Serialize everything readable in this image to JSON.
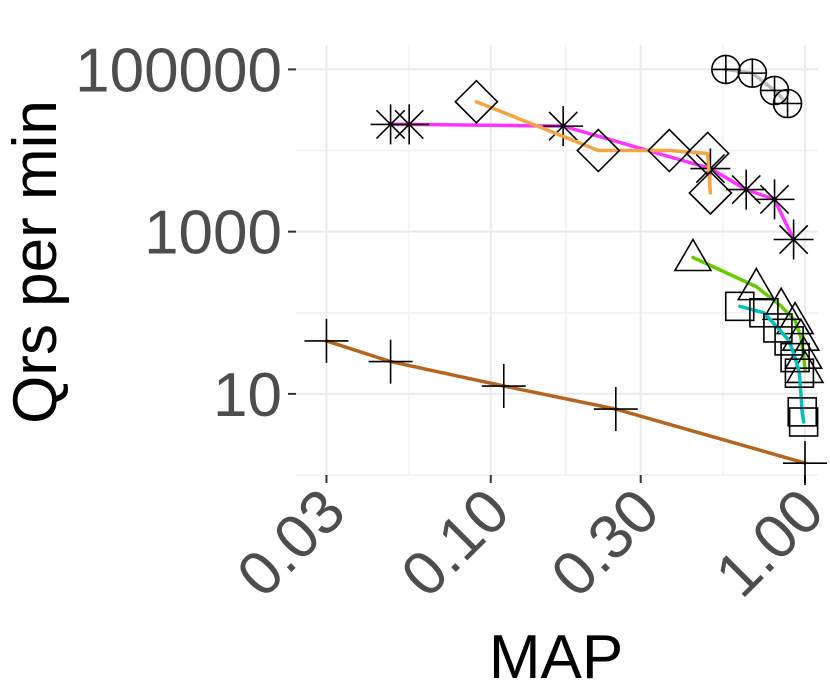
{
  "chart_data": {
    "type": "line",
    "xlabel": "MAP",
    "ylabel": "Qrs per min",
    "x_scale": "log10",
    "y_scale": "log10",
    "xlim": [
      0.024,
      1.1
    ],
    "ylim": [
      1.0,
      200000
    ],
    "x_ticks": [
      0.03,
      0.1,
      0.3,
      1.0
    ],
    "x_tick_labels": [
      "0.03",
      "0.10",
      "0.30",
      "1.00"
    ],
    "y_ticks": [
      10,
      1000,
      100000
    ],
    "y_tick_labels": [
      "10",
      "1000",
      "100000"
    ],
    "grid": true,
    "legend": "none",
    "series": [
      {
        "color": "#b5651d",
        "marker": "plus",
        "points": [
          [
            0.03,
            45
          ],
          [
            0.048,
            25
          ],
          [
            0.11,
            12.5
          ],
          [
            0.25,
            6.5
          ],
          [
            1.0,
            1.4
          ]
        ]
      },
      {
        "color": "#ff33ff",
        "marker": "asterisk",
        "points": [
          [
            0.048,
            21000
          ],
          [
            0.055,
            21000
          ],
          [
            0.17,
            20000
          ],
          [
            0.5,
            6000
          ],
          [
            0.65,
            3300
          ],
          [
            0.8,
            2500
          ],
          [
            0.92,
            800
          ]
        ]
      },
      {
        "color": "#f5a442",
        "marker": "diamond",
        "points": [
          [
            0.09,
            40000
          ],
          [
            0.22,
            10000
          ],
          [
            0.37,
            10000
          ],
          [
            0.49,
            9200
          ],
          [
            0.5,
            3000
          ]
        ]
      },
      {
        "color": "#bdbdbd",
        "marker": "circle-plus",
        "points": [
          [
            0.56,
            100000
          ],
          [
            0.68,
            90000
          ],
          [
            0.8,
            55000
          ],
          [
            0.88,
            38000
          ]
        ]
      },
      {
        "color": "#66cc00",
        "marker": "triangle",
        "points": [
          [
            0.44,
            480
          ],
          [
            0.7,
            210
          ],
          [
            0.84,
            120
          ],
          [
            0.93,
            80
          ],
          [
            0.97,
            50
          ],
          [
            0.99,
            30
          ],
          [
            1.0,
            20
          ]
        ]
      },
      {
        "color": "#00c0c0",
        "marker": "square",
        "points": [
          [
            0.62,
            120
          ],
          [
            0.74,
            100
          ],
          [
            0.82,
            65
          ],
          [
            0.89,
            45
          ],
          [
            0.93,
            28
          ],
          [
            0.96,
            18
          ],
          [
            0.98,
            6
          ],
          [
            0.99,
            4.5
          ]
        ]
      }
    ]
  }
}
